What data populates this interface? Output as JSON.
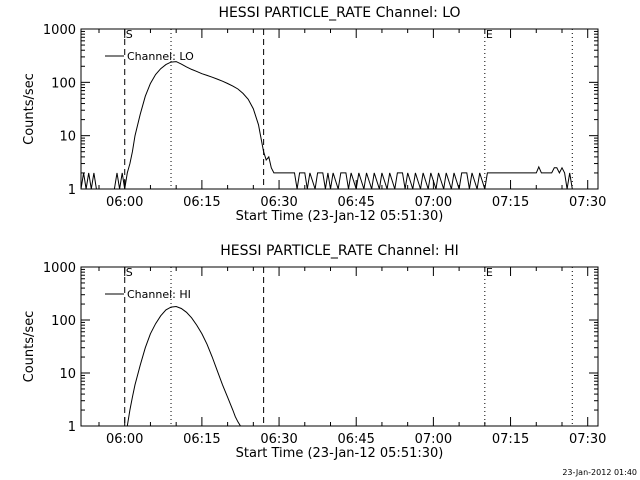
{
  "footer": {
    "timestamp": "23-Jan-2012 01:40"
  },
  "chart_data": [
    {
      "type": "line",
      "title": "HESSI PARTICLE_RATE Channel: LO",
      "xlabel": "Start Time (23-Jan-12 05:51:30)",
      "ylabel": "Counts/sec",
      "yscale": "log",
      "xlim": [
        "05:51:30",
        "07:32:00"
      ],
      "ylim": [
        1,
        1000
      ],
      "xticks": [
        "06:00",
        "06:15",
        "06:30",
        "06:45",
        "07:00",
        "07:15",
        "07:30"
      ],
      "yticks": [
        "1",
        "10",
        "100",
        "1000"
      ],
      "legend": {
        "position": "top-left",
        "entries": [
          "Channel: LO"
        ]
      },
      "markers": [
        {
          "time": "06:00:00",
          "label": "S",
          "style": "dashed"
        },
        {
          "time": "06:09:00",
          "label": "",
          "style": "dotted"
        },
        {
          "time": "06:27:00",
          "label": "",
          "style": "dashed"
        },
        {
          "time": "07:10:00",
          "label": "E",
          "style": "dotted"
        },
        {
          "time": "07:27:00",
          "label": "",
          "style": "dotted"
        }
      ],
      "series": [
        {
          "name": "Channel: LO",
          "points": [
            [
              "05:51:30",
              1
            ],
            [
              "05:52:00",
              2
            ],
            [
              "05:52:30",
              1
            ],
            [
              "05:53:00",
              2
            ],
            [
              "05:53:30",
              1
            ],
            [
              "05:54:00",
              2
            ],
            [
              "05:54:30",
              1
            ],
            [
              "05:58:00",
              1
            ],
            [
              "05:58:30",
              2
            ],
            [
              "05:59:00",
              1
            ],
            [
              "05:59:30",
              2
            ],
            [
              "06:00:00",
              1
            ],
            [
              "06:00:30",
              2
            ],
            [
              "06:01:00",
              3
            ],
            [
              "06:01:30",
              5
            ],
            [
              "06:02:00",
              10
            ],
            [
              "06:03:00",
              25
            ],
            [
              "06:04:00",
              55
            ],
            [
              "06:05:00",
              95
            ],
            [
              "06:06:00",
              140
            ],
            [
              "06:07:00",
              180
            ],
            [
              "06:08:00",
              215
            ],
            [
              "06:09:00",
              240
            ],
            [
              "06:10:00",
              245
            ],
            [
              "06:11:00",
              220
            ],
            [
              "06:12:00",
              195
            ],
            [
              "06:13:00",
              175
            ],
            [
              "06:14:00",
              160
            ],
            [
              "06:15:00",
              145
            ],
            [
              "06:16:00",
              135
            ],
            [
              "06:17:00",
              125
            ],
            [
              "06:18:00",
              115
            ],
            [
              "06:19:00",
              105
            ],
            [
              "06:20:00",
              95
            ],
            [
              "06:21:00",
              85
            ],
            [
              "06:22:00",
              75
            ],
            [
              "06:23:00",
              62
            ],
            [
              "06:24:00",
              48
            ],
            [
              "06:25:00",
              32
            ],
            [
              "06:26:00",
              16
            ],
            [
              "06:26:30",
              9
            ],
            [
              "06:27:00",
              5
            ],
            [
              "06:27:30",
              3.5
            ],
            [
              "06:28:00",
              4
            ],
            [
              "06:28:30",
              2.5
            ],
            [
              "06:29:00",
              2
            ],
            [
              "06:33:00",
              2
            ],
            [
              "06:33:30",
              1
            ],
            [
              "06:34:00",
              2
            ],
            [
              "06:35:00",
              2
            ],
            [
              "06:35:30",
              1
            ],
            [
              "06:36:00",
              2
            ],
            [
              "06:37:00",
              1
            ],
            [
              "06:37:30",
              2
            ],
            [
              "06:38:30",
              2
            ],
            [
              "06:39:00",
              1
            ],
            [
              "06:39:30",
              2
            ],
            [
              "06:40:00",
              1
            ],
            [
              "06:40:30",
              2
            ],
            [
              "06:41:30",
              1
            ],
            [
              "06:42:00",
              2
            ],
            [
              "06:43:00",
              2
            ],
            [
              "06:43:30",
              1
            ],
            [
              "06:44:00",
              2
            ],
            [
              "06:45:00",
              1
            ],
            [
              "06:45:30",
              2
            ],
            [
              "06:46:30",
              1
            ],
            [
              "06:47:00",
              2
            ],
            [
              "06:48:00",
              1
            ],
            [
              "06:48:30",
              2
            ],
            [
              "06:49:30",
              1
            ],
            [
              "06:50:00",
              2
            ],
            [
              "06:51:00",
              1
            ],
            [
              "06:51:30",
              2
            ],
            [
              "06:52:30",
              1
            ],
            [
              "06:53:00",
              2
            ],
            [
              "06:54:00",
              2
            ],
            [
              "06:54:30",
              1
            ],
            [
              "06:55:00",
              2
            ],
            [
              "06:56:00",
              1
            ],
            [
              "06:56:30",
              2
            ],
            [
              "06:57:30",
              1
            ],
            [
              "06:58:00",
              2
            ],
            [
              "06:59:00",
              1
            ],
            [
              "06:59:30",
              2
            ],
            [
              "07:00:30",
              1
            ],
            [
              "07:01:00",
              2
            ],
            [
              "07:02:00",
              1
            ],
            [
              "07:02:30",
              2
            ],
            [
              "07:03:30",
              1
            ],
            [
              "07:04:00",
              2
            ],
            [
              "07:05:00",
              1
            ],
            [
              "07:05:30",
              2
            ],
            [
              "07:06:30",
              2
            ],
            [
              "07:07:00",
              1
            ],
            [
              "07:07:30",
              2
            ],
            [
              "07:08:30",
              1
            ],
            [
              "07:09:00",
              2
            ],
            [
              "07:10:00",
              1
            ],
            [
              "07:10:30",
              2
            ],
            [
              "07:20:00",
              2
            ],
            [
              "07:20:30",
              2.6
            ],
            [
              "07:21:00",
              2
            ],
            [
              "07:23:00",
              2
            ],
            [
              "07:23:30",
              2.5
            ],
            [
              "07:24:00",
              2.5
            ],
            [
              "07:24:30",
              2
            ],
            [
              "07:25:00",
              2.5
            ],
            [
              "07:25:30",
              2
            ],
            [
              "07:26:00",
              1
            ],
            [
              "07:26:30",
              2
            ],
            [
              "07:27:00",
              1
            ]
          ]
        }
      ]
    },
    {
      "type": "line",
      "title": "HESSI PARTICLE_RATE Channel: HI",
      "xlabel": "Start Time (23-Jan-12 05:51:30)",
      "ylabel": "Counts/sec",
      "yscale": "log",
      "xlim": [
        "05:51:30",
        "07:32:00"
      ],
      "ylim": [
        1,
        1000
      ],
      "xticks": [
        "06:00",
        "06:15",
        "06:30",
        "06:45",
        "07:00",
        "07:15",
        "07:30"
      ],
      "yticks": [
        "1",
        "10",
        "100",
        "1000"
      ],
      "legend": {
        "position": "top-left",
        "entries": [
          "Channel: HI"
        ]
      },
      "markers": [
        {
          "time": "06:00:00",
          "label": "S",
          "style": "dashed"
        },
        {
          "time": "06:09:00",
          "label": "",
          "style": "dotted"
        },
        {
          "time": "06:27:00",
          "label": "",
          "style": "dashed"
        },
        {
          "time": "07:10:00",
          "label": "E",
          "style": "dotted"
        },
        {
          "time": "07:27:00",
          "label": "",
          "style": "dotted"
        }
      ],
      "series": [
        {
          "name": "Channel: HI",
          "points": [
            [
              "06:00:30",
              1
            ],
            [
              "06:01:00",
              2
            ],
            [
              "06:01:30",
              3.5
            ],
            [
              "06:02:00",
              6
            ],
            [
              "06:03:00",
              14
            ],
            [
              "06:04:00",
              30
            ],
            [
              "06:05:00",
              55
            ],
            [
              "06:06:00",
              85
            ],
            [
              "06:07:00",
              120
            ],
            [
              "06:08:00",
              155
            ],
            [
              "06:09:00",
              175
            ],
            [
              "06:10:00",
              180
            ],
            [
              "06:11:00",
              165
            ],
            [
              "06:12:00",
              140
            ],
            [
              "06:13:00",
              110
            ],
            [
              "06:14:00",
              80
            ],
            [
              "06:15:00",
              55
            ],
            [
              "06:16:00",
              35
            ],
            [
              "06:17:00",
              20
            ],
            [
              "06:18:00",
              11
            ],
            [
              "06:19:00",
              6
            ],
            [
              "06:20:00",
              3.5
            ],
            [
              "06:21:00",
              2
            ],
            [
              "06:21:30",
              1.5
            ],
            [
              "06:22:00",
              1.2
            ],
            [
              "06:22:30",
              1
            ]
          ]
        }
      ]
    }
  ]
}
